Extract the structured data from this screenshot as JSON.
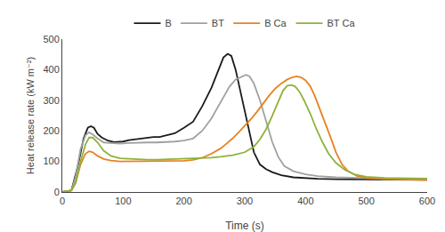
{
  "chart_data": {
    "type": "line",
    "xlabel": "Time (s)",
    "ylabel": "Heat release rate (kW m⁻²)",
    "xlim": [
      0,
      600
    ],
    "ylim": [
      0,
      500
    ],
    "xticks": [
      0,
      100,
      200,
      300,
      400,
      500,
      600
    ],
    "yticks": [
      0,
      100,
      200,
      300,
      400,
      500
    ],
    "grid": false,
    "legend": "top",
    "series": [
      {
        "name": "B",
        "color": "#1a1a1a",
        "x": [
          0,
          5,
          15,
          25,
          35,
          42,
          47,
          52,
          58,
          65,
          75,
          85,
          100,
          110,
          120,
          130,
          140,
          150,
          160,
          170,
          185,
          200,
          215,
          230,
          245,
          255,
          265,
          272,
          278,
          285,
          295,
          305,
          315,
          325,
          335,
          345,
          360,
          380,
          400,
          420,
          450,
          500,
          550,
          600
        ],
        "values": [
          0,
          1,
          5,
          80,
          175,
          210,
          215,
          210,
          190,
          178,
          168,
          163,
          165,
          170,
          173,
          175,
          178,
          180,
          180,
          185,
          192,
          210,
          230,
          280,
          340,
          390,
          440,
          452,
          445,
          400,
          310,
          210,
          130,
          90,
          75,
          65,
          55,
          48,
          45,
          43,
          42,
          41,
          40,
          40
        ]
      },
      {
        "name": "BT",
        "color": "#a0a0a0",
        "x": [
          0,
          5,
          15,
          22,
          30,
          38,
          44,
          50,
          58,
          68,
          80,
          95,
          110,
          125,
          140,
          155,
          170,
          185,
          200,
          215,
          230,
          245,
          255,
          265,
          275,
          285,
          295,
          302,
          308,
          315,
          325,
          335,
          345,
          355,
          365,
          380,
          400,
          420,
          450,
          500,
          550,
          600
        ],
        "values": [
          0,
          1,
          5,
          50,
          140,
          185,
          195,
          188,
          175,
          162,
          160,
          158,
          160,
          162,
          162,
          162,
          163,
          165,
          168,
          175,
          200,
          240,
          275,
          310,
          345,
          368,
          378,
          383,
          378,
          355,
          300,
          230,
          165,
          115,
          85,
          68,
          58,
          52,
          48,
          45,
          43,
          42
        ]
      },
      {
        "name": "B Ca",
        "color": "#e8821e",
        "x": [
          0,
          5,
          15,
          22,
          30,
          38,
          44,
          50,
          58,
          68,
          80,
          95,
          110,
          125,
          140,
          155,
          170,
          185,
          200,
          215,
          230,
          245,
          260,
          270,
          280,
          290,
          300,
          310,
          320,
          330,
          340,
          350,
          360,
          370,
          378,
          385,
          393,
          400,
          408,
          415,
          422,
          430,
          440,
          450,
          460,
          470,
          485,
          500,
          530,
          600
        ],
        "values": [
          0,
          1,
          5,
          30,
          90,
          125,
          133,
          130,
          118,
          108,
          103,
          100,
          100,
          100,
          100,
          100,
          100,
          100,
          102,
          105,
          112,
          125,
          142,
          158,
          175,
          195,
          215,
          238,
          262,
          290,
          315,
          338,
          355,
          368,
          375,
          378,
          375,
          365,
          345,
          315,
          280,
          240,
          185,
          130,
          90,
          68,
          52,
          46,
          42,
          40
        ]
      },
      {
        "name": "BT Ca",
        "color": "#8db33a",
        "x": [
          0,
          5,
          15,
          22,
          30,
          38,
          44,
          50,
          58,
          68,
          80,
          95,
          110,
          125,
          140,
          155,
          170,
          185,
          200,
          215,
          230,
          245,
          260,
          280,
          300,
          315,
          325,
          335,
          345,
          355,
          363,
          370,
          377,
          383,
          390,
          398,
          408,
          418,
          428,
          438,
          450,
          465,
          480,
          500,
          530,
          600
        ],
        "values": [
          0,
          1,
          5,
          30,
          100,
          155,
          178,
          178,
          162,
          135,
          118,
          110,
          108,
          107,
          106,
          106,
          107,
          108,
          108,
          108,
          110,
          112,
          115,
          120,
          130,
          148,
          172,
          205,
          248,
          295,
          332,
          348,
          350,
          345,
          328,
          298,
          255,
          205,
          162,
          125,
          95,
          72,
          58,
          50,
          46,
          44
        ]
      }
    ]
  }
}
